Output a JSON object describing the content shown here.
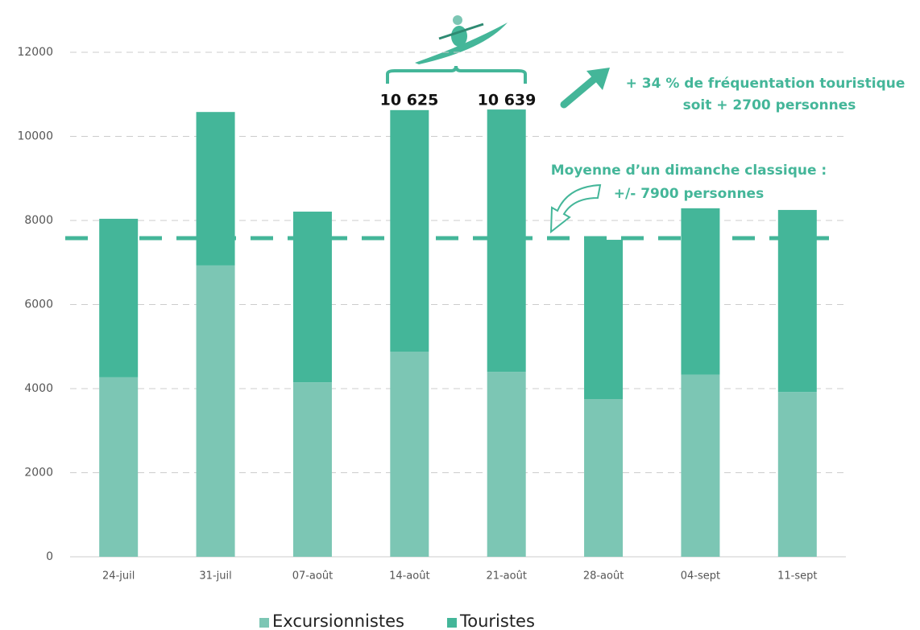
{
  "chart_data": {
    "type": "stacked_bar",
    "categories": [
      "24-juil",
      "31-juil",
      "07-août",
      "14-août",
      "21-août",
      "28-août",
      "04-sept",
      "11-sept"
    ],
    "series": [
      {
        "name": "Excursionnistes",
        "color": "#7cc6b4",
        "values": [
          4270,
          6930,
          4150,
          4880,
          4400,
          3750,
          4330,
          3920
        ]
      },
      {
        "name": "Touristes",
        "color": "#44b699",
        "values": [
          3770,
          3650,
          4060,
          5745,
          6239,
          3790,
          3960,
          4330
        ]
      }
    ],
    "ylim": [
      0,
      12000
    ],
    "yticks": [
      0,
      2000,
      4000,
      6000,
      8000,
      10000,
      12000
    ],
    "grid": true,
    "legend": "bottom",
    "average_line": {
      "value": 7580,
      "color": "#44b699"
    },
    "bar_annotations": [
      "10 625",
      "10 639"
    ],
    "annotations": [
      "+ 34 % de fréquentation touristique",
      "soit + 2700 personnes",
      "Moyenne d’un dimanche classique :",
      "+/- 7900 personnes"
    ]
  }
}
